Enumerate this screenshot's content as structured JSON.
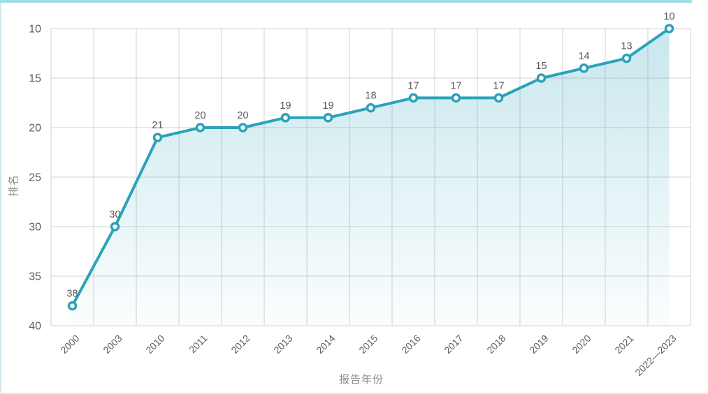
{
  "page": {
    "top_border_color": "#a3dce7",
    "left_border_color": "#d3e6f0",
    "bottom_border_color": "#e9edef",
    "background_color": "#ffffff"
  },
  "chart_data": {
    "type": "line",
    "title": "",
    "xlabel": "报告年份",
    "ylabel": "排名",
    "categories": [
      "2000",
      "2003",
      "2010",
      "2011",
      "2012",
      "2013",
      "2014",
      "2015",
      "2016",
      "2017",
      "2018",
      "2019",
      "2020",
      "2021",
      "2022—2023"
    ],
    "values": [
      38,
      30,
      21,
      20,
      20,
      19,
      19,
      18,
      17,
      17,
      17,
      15,
      14,
      13,
      10
    ],
    "y_ticks": [
      10,
      15,
      20,
      25,
      30,
      35,
      40
    ],
    "ylim": [
      10,
      40
    ],
    "y_axis_inverted": true,
    "grid": true,
    "legend_position": "none",
    "marker": "open-circle",
    "line_color": "#2aa3b9",
    "marker_fill": "#ffffff",
    "area_gradient_top": "rgba(42,163,185,0.26)",
    "area_gradient_bottom": "rgba(42,163,185,0.02)",
    "grid_color": "#d2d2d2",
    "tick_label_color": "#5a5f64",
    "value_label_color": "#595959",
    "axis_title_color": "#8c8c8c"
  }
}
